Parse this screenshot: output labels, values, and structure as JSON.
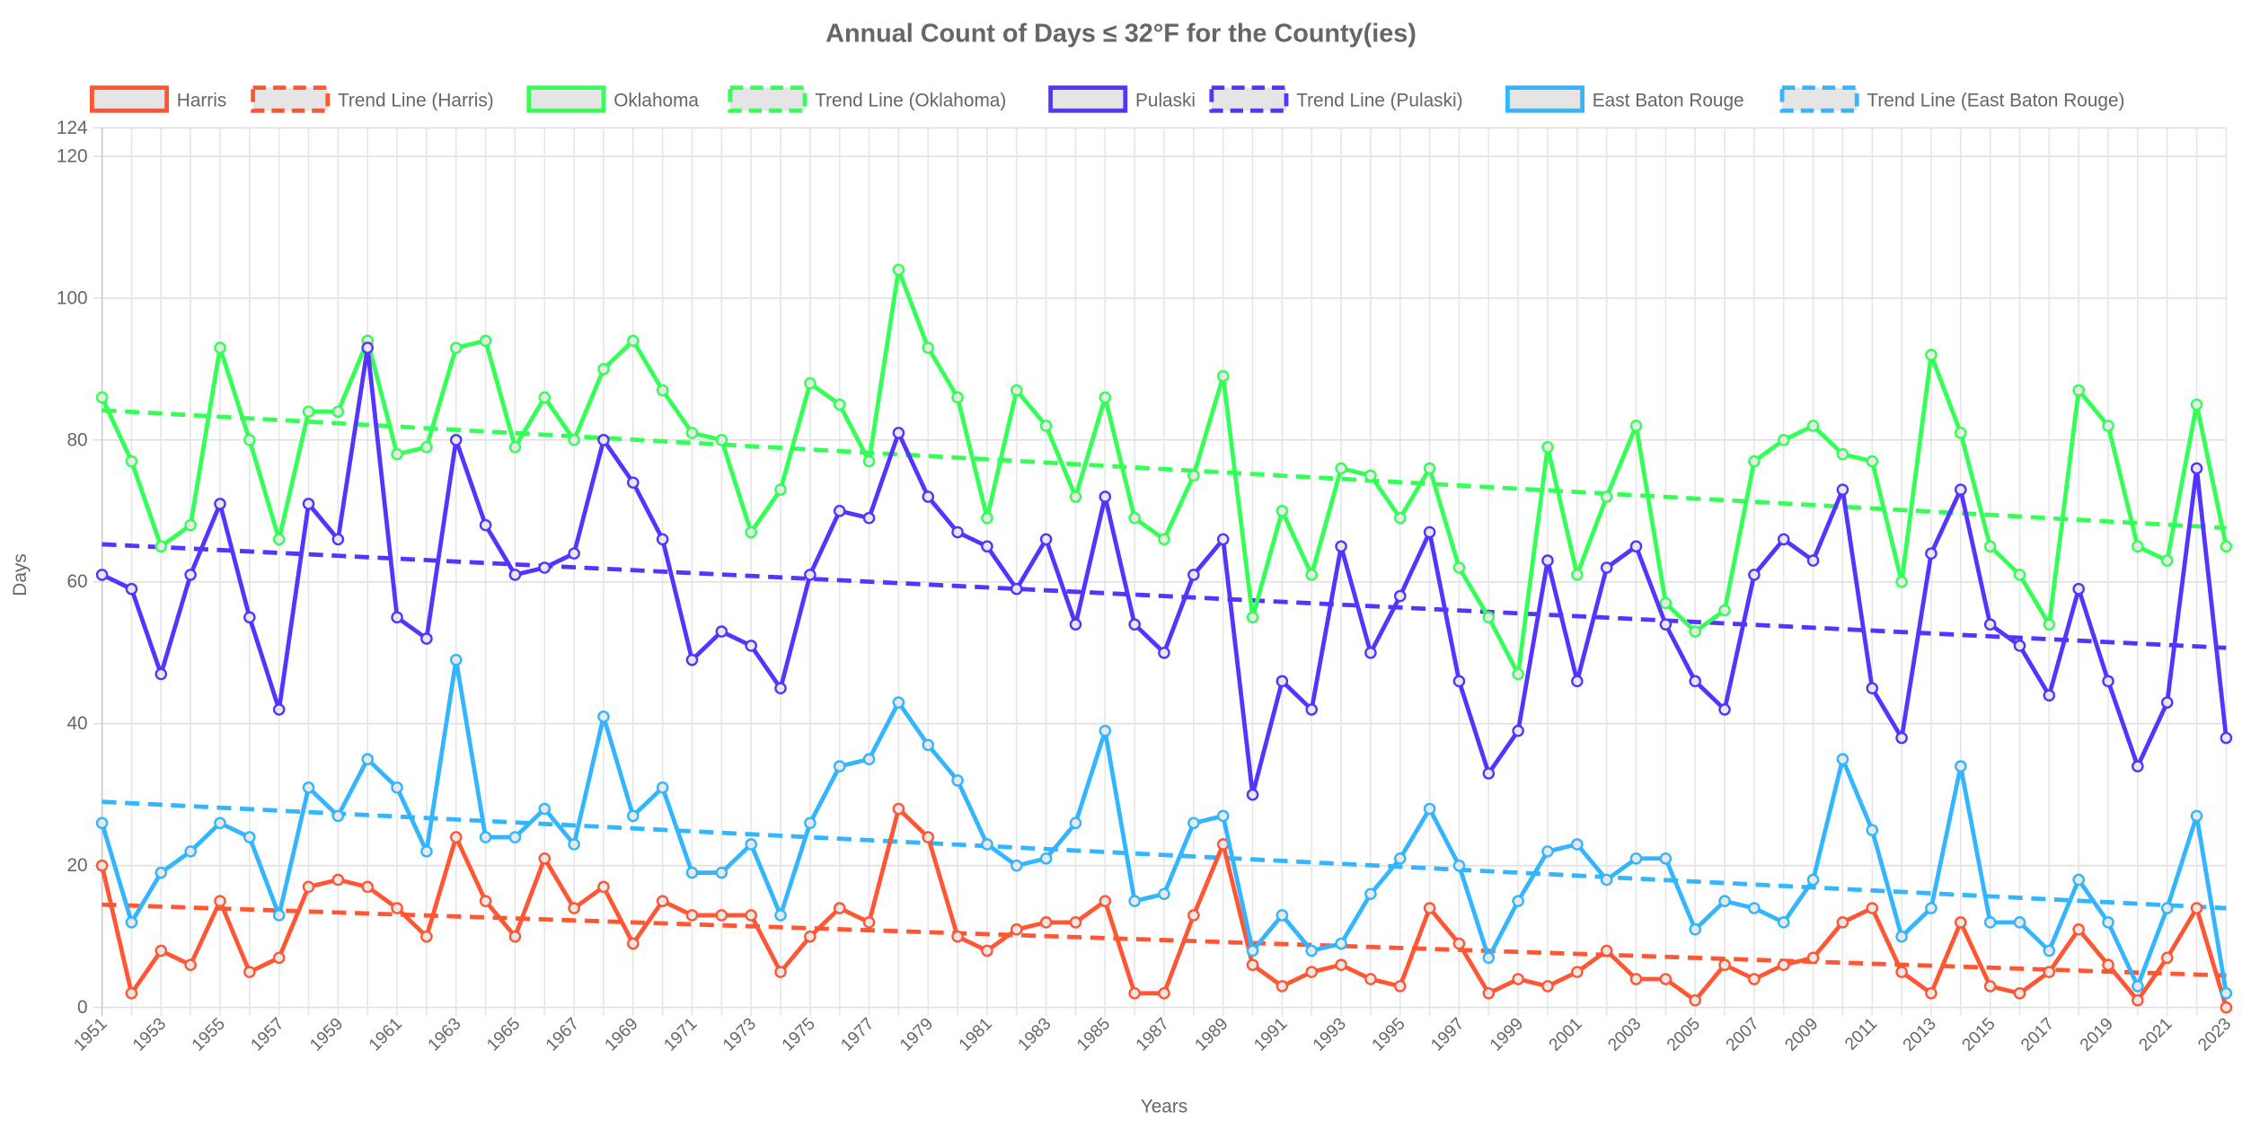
{
  "chart_data": {
    "type": "line",
    "title": "Annual Count of Days ≤ 32°F for the County(ies)",
    "xlabel": "Years",
    "ylabel": "Days",
    "ylim": [
      0,
      124
    ],
    "yticks": [
      "0",
      "20",
      "40",
      "60",
      "80",
      "100",
      "120",
      "124"
    ],
    "grid": true,
    "legend_position": "top",
    "x": [
      1951,
      1952,
      1953,
      1954,
      1955,
      1956,
      1957,
      1958,
      1959,
      1960,
      1961,
      1962,
      1963,
      1964,
      1965,
      1966,
      1967,
      1968,
      1969,
      1970,
      1971,
      1972,
      1973,
      1974,
      1975,
      1976,
      1977,
      1978,
      1979,
      1980,
      1981,
      1982,
      1983,
      1984,
      1985,
      1986,
      1987,
      1988,
      1989,
      1990,
      1991,
      1992,
      1993,
      1994,
      1995,
      1996,
      1997,
      1998,
      1999,
      2000,
      2001,
      2002,
      2003,
      2004,
      2005,
      2006,
      2007,
      2008,
      2009,
      2010,
      2011,
      2012,
      2013,
      2014,
      2015,
      2016,
      2017,
      2018,
      2019,
      2020,
      2021,
      2022,
      2023
    ],
    "xtick_labels": [
      "1951",
      "1953",
      "1955",
      "1957",
      "1959",
      "1961",
      "1963",
      "1965",
      "1967",
      "1969",
      "1971",
      "1973",
      "1975",
      "1977",
      "1979",
      "1981",
      "1983",
      "1985",
      "1987",
      "1989",
      "1991",
      "1993",
      "1995",
      "1997",
      "1999",
      "2001",
      "2003",
      "2005",
      "2007",
      "2009",
      "2011",
      "2013",
      "2015",
      "2017",
      "2019",
      "2021",
      "2023"
    ],
    "series": [
      {
        "name": "Harris",
        "color": "#ff5733",
        "values": [
          20,
          2,
          8,
          6,
          15,
          5,
          7,
          17,
          18,
          17,
          14,
          10,
          24,
          15,
          10,
          21,
          14,
          17,
          9,
          15,
          13,
          13,
          13,
          5,
          10,
          14,
          12,
          28,
          24,
          10,
          8,
          11,
          12,
          12,
          15,
          2,
          2,
          13,
          23,
          6,
          3,
          5,
          6,
          4,
          3,
          14,
          9,
          2,
          4,
          3,
          5,
          8,
          4,
          4,
          1,
          6,
          4,
          6,
          7,
          12,
          14,
          5,
          2,
          12,
          3,
          2,
          5,
          11,
          6,
          1,
          7,
          14,
          0
        ]
      },
      {
        "name": "Trend Line (Harris)",
        "color": "#ff5733",
        "dashed": true,
        "trend": [
          14.5,
          4.5
        ]
      },
      {
        "name": "Oklahoma",
        "color": "#33ff57",
        "values": [
          86,
          77,
          65,
          68,
          93,
          80,
          66,
          84,
          84,
          94,
          78,
          79,
          93,
          94,
          79,
          86,
          80,
          90,
          94,
          87,
          81,
          80,
          67,
          73,
          88,
          85,
          77,
          104,
          93,
          86,
          69,
          87,
          82,
          72,
          86,
          69,
          66,
          75,
          89,
          55,
          70,
          61,
          76,
          75,
          69,
          76,
          62,
          55,
          47,
          79,
          61,
          72,
          82,
          57,
          53,
          56,
          77,
          80,
          82,
          78,
          77,
          60,
          92,
          81,
          65,
          61,
          54,
          87,
          82,
          65,
          63,
          85,
          65
        ]
      },
      {
        "name": "Trend Line (Oklahoma)",
        "color": "#33ff57",
        "dashed": true,
        "trend": [
          84.2,
          67.6
        ]
      },
      {
        "name": "Pulaski",
        "color": "#5733ff",
        "values": [
          61,
          59,
          47,
          61,
          71,
          55,
          42,
          71,
          66,
          93,
          55,
          52,
          80,
          68,
          61,
          62,
          64,
          80,
          74,
          66,
          49,
          53,
          51,
          45,
          61,
          70,
          69,
          81,
          72,
          67,
          65,
          59,
          66,
          54,
          72,
          54,
          50,
          61,
          66,
          30,
          46,
          42,
          65,
          50,
          58,
          67,
          46,
          33,
          39,
          63,
          46,
          62,
          65,
          54,
          46,
          42,
          61,
          66,
          63,
          73,
          45,
          38,
          64,
          73,
          54,
          51,
          44,
          59,
          46,
          34,
          43,
          76,
          38
        ]
      },
      {
        "name": "Trend Line (Pulaski)",
        "color": "#5733ff",
        "dashed": true,
        "trend": [
          65.3,
          50.7
        ]
      },
      {
        "name": "East Baton Rouge",
        "color": "#33b5ff",
        "values": [
          26,
          12,
          19,
          22,
          26,
          24,
          13,
          31,
          27,
          35,
          31,
          22,
          49,
          24,
          24,
          28,
          23,
          41,
          27,
          31,
          19,
          19,
          23,
          13,
          26,
          34,
          35,
          43,
          37,
          32,
          23,
          20,
          21,
          26,
          39,
          15,
          16,
          26,
          27,
          8,
          13,
          8,
          9,
          16,
          21,
          28,
          20,
          7,
          15,
          22,
          23,
          18,
          21,
          21,
          11,
          15,
          14,
          12,
          18,
          35,
          25,
          10,
          14,
          34,
          12,
          12,
          8,
          18,
          12,
          3,
          14,
          27,
          2
        ]
      },
      {
        "name": "Trend Line (East Baton Rouge)",
        "color": "#33b5ff",
        "dashed": true,
        "trend": [
          29.0,
          14.0
        ]
      }
    ]
  }
}
